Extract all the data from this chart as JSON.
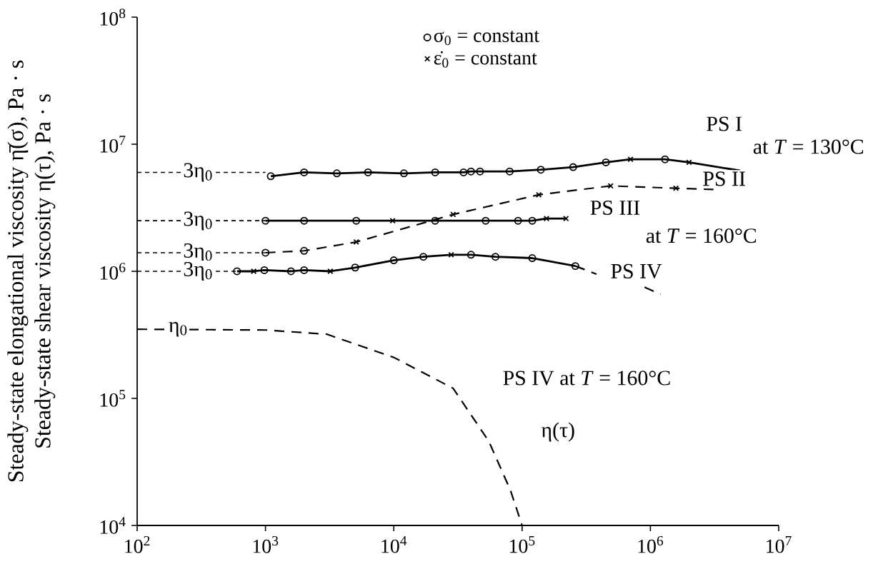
{
  "chart_data": {
    "type": "line",
    "log": "xy",
    "ylabel": "Steady-state elongational viscosity η̄(σ), Pa · s Steady-state shear viscosity η(τ), Pa · s",
    "xlim": [
      100,
      10000000
    ],
    "ylim": [
      10000,
      100000000
    ],
    "xticks": [
      {
        "value": 100,
        "label": "10$^{2}$"
      },
      {
        "value": 1000,
        "label": "10$^{3}$"
      },
      {
        "value": 10000,
        "label": "10$^{4}$"
      },
      {
        "value": 100000,
        "label": "10$^{5}$"
      },
      {
        "value": 1000000,
        "label": "10$^{6}$"
      },
      {
        "value": 10000000,
        "label": "10$^{7}$"
      }
    ],
    "yticks": [
      {
        "value": 10000,
        "label": "10$^{4}$"
      },
      {
        "value": 100000,
        "label": "10$^{5}$"
      },
      {
        "value": 1000000,
        "label": "10$^{6}$"
      },
      {
        "value": 10000000,
        "label": "10$^{7}$"
      },
      {
        "value": 100000000,
        "label": "10$^{8}$"
      }
    ],
    "legend": "top",
    "series": [
      {
        "name": "σ$_{0}$ = constant",
        "type": "scatter",
        "marker": "circle",
        "color": "#000000",
        "x": [
          1100,
          2000,
          3600,
          6300,
          12000,
          21000,
          35000,
          40000,
          47000,
          80000,
          140000,
          250000,
          450000,
          1300000,
          1000,
          2000,
          5100,
          21000,
          52000,
          93000,
          120000,
          1000,
          2000,
          600,
          980,
          1580,
          2000,
          5000,
          10000,
          17000,
          40000,
          62000,
          120000,
          260000
        ],
        "values": [
          5600000,
          6000000,
          5900000,
          6000000,
          5900000,
          6000000,
          6000000,
          6100000,
          6100000,
          6100000,
          6300000,
          6600000,
          7200000,
          7600000,
          2500000,
          2500000,
          2500000,
          2500000,
          2500000,
          2500000,
          2500000,
          1400000,
          1450000,
          1000000,
          1020000,
          1000000,
          1020000,
          1070000,
          1220000,
          1300000,
          1350000,
          1300000,
          1270000,
          1100000
        ]
      },
      {
        "name": "ε̇$_{0}$ = constant",
        "type": "scatter",
        "marker": "cross",
        "color": "#000000",
        "x": [
          700000,
          2000000,
          9800,
          155000,
          220000,
          5100,
          29000,
          135000,
          490000,
          1580000,
          810,
          3200,
          28000
        ],
        "values": [
          7600000,
          7200000,
          2500000,
          2600000,
          2600000,
          1700000,
          2800000,
          4000000,
          4700000,
          4500000,
          1000000,
          1000000,
          1350000
        ]
      },
      {
        "type": "line",
        "line_style": "solid",
        "color": "#000000",
        "x": [
          1100,
          2000,
          3600,
          6300,
          12000,
          21000,
          35000,
          40000,
          47000,
          80000,
          140000,
          250000,
          450000,
          700000,
          1300000,
          2000000,
          5000000
        ],
        "values": [
          5600000,
          6000000,
          5900000,
          6000000,
          5900000,
          6000000,
          6000000,
          6100000,
          6100000,
          6100000,
          6300000,
          6600000,
          7200000,
          7600000,
          7600000,
          7200000,
          6200000
        ]
      },
      {
        "line_style": "dashed",
        "color": "#000000",
        "x": [
          1000,
          2000,
          5100,
          29000,
          135000,
          490000,
          1580000,
          3100000
        ],
        "values": [
          1400000,
          1450000,
          1700000,
          2800000,
          4000000,
          4700000,
          4500000,
          4400000
        ]
      },
      {
        "line_style": "solid",
        "color": "#000000",
        "x": [
          1000,
          2000,
          5100,
          9800,
          21000,
          52000,
          93000,
          120000,
          155000,
          220000
        ],
        "values": [
          2500000,
          2500000,
          2500000,
          2500000,
          2500000,
          2500000,
          2500000,
          2500000,
          2600000,
          2600000
        ]
      },
      {
        "line_style": "solid",
        "color": "#000000",
        "x": [
          600,
          810,
          980,
          1580,
          2000,
          3200,
          5000,
          10000,
          17000,
          28000,
          40000,
          62000,
          120000,
          260000
        ],
        "values": [
          1000000,
          1000000,
          1020000,
          1000000,
          1020000,
          1000000,
          1070000,
          1220000,
          1300000,
          1350000,
          1350000,
          1300000,
          1270000,
          1100000
        ]
      },
      {
        "line_style": "dashed",
        "color": "#000000",
        "x": [
          260000,
          380000,
          600000,
          900000,
          1200000
        ],
        "values": [
          1100000,
          950000,
          null,
          750000,
          660000
        ]
      },
      {
        "line_style": "dashed",
        "color": "#000000",
        "x": [
          100,
          1000,
          3000,
          10000,
          29000,
          55000,
          81000,
          100000
        ],
        "values": [
          350000,
          345000,
          320000,
          210000,
          120000,
          46000,
          19000,
          10000
        ]
      },
      {
        "line_style": "dotted",
        "color": "#000000",
        "x": [
          100,
          1000
        ],
        "values": [
          6000000,
          6000000
        ]
      },
      {
        "line_style": "dotted",
        "color": "#000000",
        "x": [
          100,
          1000
        ],
        "values": [
          2500000,
          2500000
        ]
      },
      {
        "line_style": "dotted",
        "color": "#000000",
        "x": [
          100,
          1000
        ],
        "values": [
          1400000,
          1400000
        ]
      },
      {
        "line_style": "dotted",
        "color": "#000000",
        "x": [
          100,
          600
        ],
        "values": [
          1000000,
          1000000
        ]
      }
    ],
    "annotations": [
      "3η$_{0}$",
      "3η$_{0}$",
      "3η$_{0}$",
      "3η$_{0}$",
      "η$_{0}$",
      "PS I",
      "at *T* = 130°C",
      "PS II",
      "PS III",
      "at *T* = 160°C",
      "PS IV",
      "PS IV at *T* = 160°C",
      "η(τ)"
    ]
  }
}
